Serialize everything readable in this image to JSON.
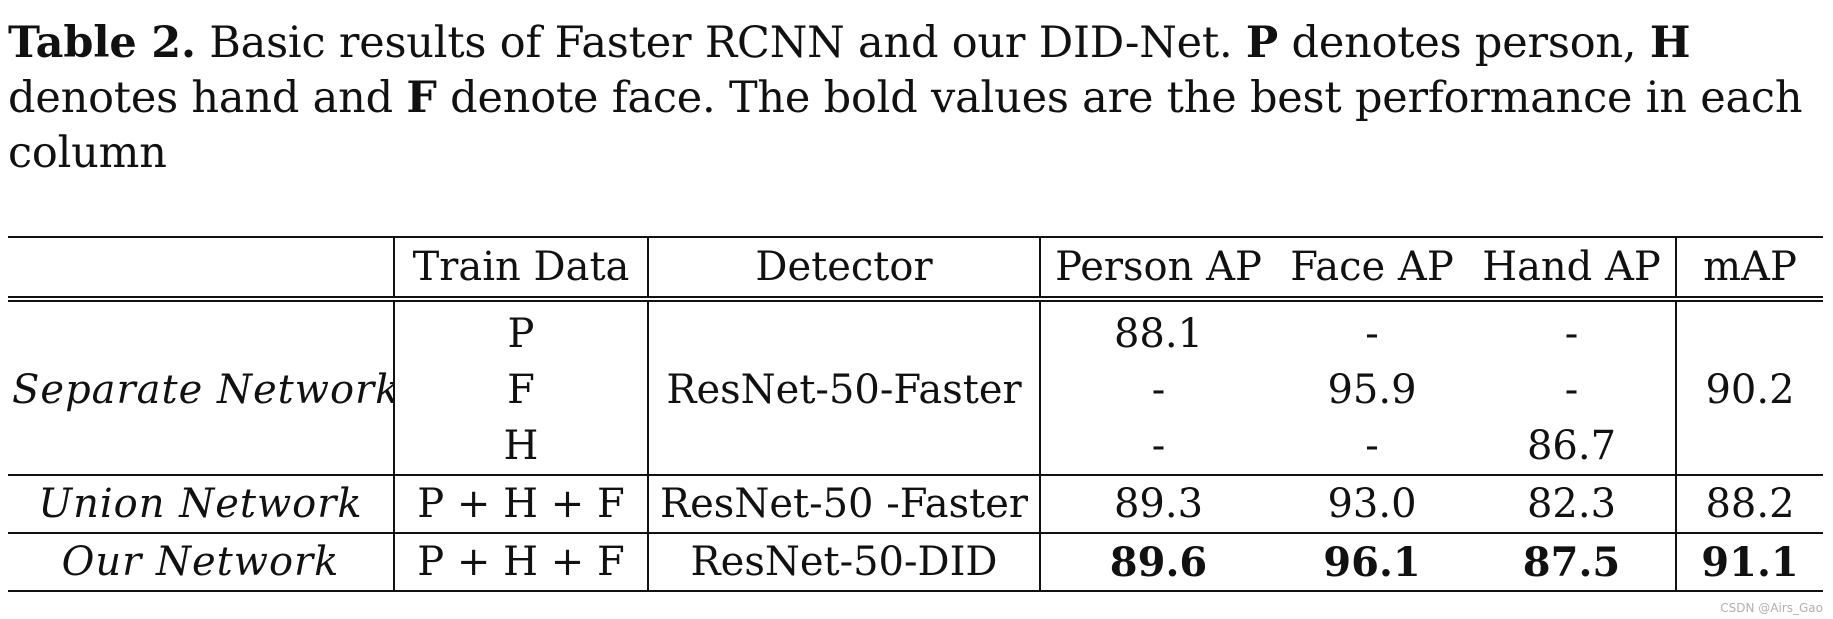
{
  "caption": {
    "label": "Table 2.",
    "text_1": " Basic results of Faster RCNN and our DID-Net. ",
    "bold_p": "P",
    "text_2": " denotes person, ",
    "bold_h": "H",
    "text_3": " denotes hand and ",
    "bold_f": "F",
    "text_4": " denote face. The bold values are the best performance in each column"
  },
  "table": {
    "headers": [
      "",
      "Train Data",
      "Detector",
      "Person AP",
      "Face AP",
      "Hand AP",
      "mAP"
    ],
    "separate": {
      "name": "Separate Network",
      "detector": "ResNet-50-Faster",
      "map": "90.2",
      "rows": [
        {
          "train": "P",
          "person": "88.1",
          "face": "-",
          "hand": "-"
        },
        {
          "train": "F",
          "person": "-",
          "face": "95.9",
          "hand": "-"
        },
        {
          "train": "H",
          "person": "-",
          "face": "-",
          "hand": "86.7"
        }
      ]
    },
    "union": {
      "name": "Union Network",
      "train": "P + H + F",
      "detector": "ResNet-50 -Faster",
      "person": "89.3",
      "face": "93.0",
      "hand": "82.3",
      "map": "88.2"
    },
    "ours": {
      "name": "Our Network",
      "train": "P + H + F",
      "detector": "ResNet-50-DID",
      "person": "89.6",
      "face": "96.1",
      "hand": "87.5",
      "map": "91.1"
    }
  },
  "watermark": "CSDN @Airs_Gao"
}
